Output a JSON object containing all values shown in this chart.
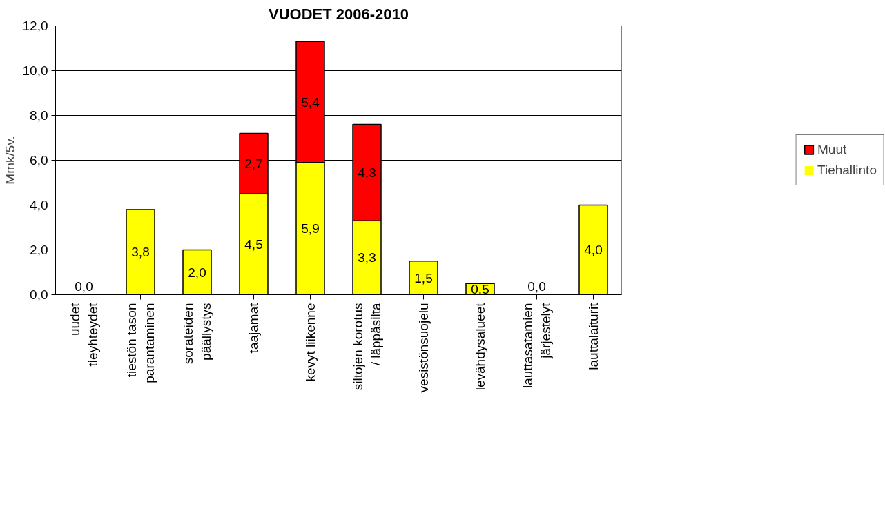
{
  "chart_data": {
    "type": "bar",
    "title": "VUODET 2006-2010",
    "ylabel": "Mmk/5v.",
    "categories": [
      "uudet\ntieyhteydet",
      "tiestön tason\nparantaminen",
      "sorateiden\npäällystys",
      "taajamat",
      "kevyt liikenne",
      "siltojen korotus\n/ läppäsilta",
      "vesistönsuojelu",
      "levähdysalueet",
      "lauttasatamien\njärjestelyt",
      "lauttalaiturit"
    ],
    "stacked": true,
    "series": [
      {
        "name": "Tiehallinto",
        "color": "#ffff00",
        "values": [
          0.0,
          3.8,
          2.0,
          4.5,
          5.9,
          3.3,
          1.5,
          0.5,
          0.0,
          4.0
        ],
        "value_labels": [
          "0,0",
          "3,8",
          "2,0",
          "4,5",
          "5,9",
          "3,3",
          "1,5",
          "0,5",
          "0,0",
          "4,0"
        ]
      },
      {
        "name": "Muut",
        "color": "#ff0000",
        "values": [
          null,
          null,
          null,
          2.7,
          5.4,
          4.3,
          null,
          null,
          null,
          null
        ],
        "value_labels": [
          null,
          null,
          null,
          "2,7",
          "5,4",
          "4,3",
          null,
          null,
          null,
          null
        ]
      }
    ],
    "ylim": [
      0,
      12
    ],
    "yticks": [
      {
        "value": 0,
        "label": "0,0"
      },
      {
        "value": 2,
        "label": "2,0"
      },
      {
        "value": 4,
        "label": "4,0"
      },
      {
        "value": 6,
        "label": "6,0"
      },
      {
        "value": 8,
        "label": "8,0"
      },
      {
        "value": 10,
        "label": "10,0"
      },
      {
        "value": 12,
        "label": "12,0"
      }
    ],
    "grid": "y",
    "legend": "right"
  }
}
